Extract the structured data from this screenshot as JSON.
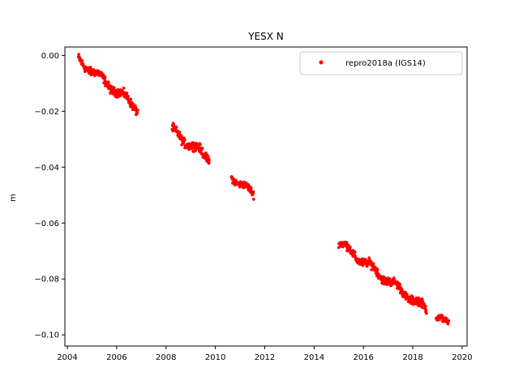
{
  "chart_data": {
    "type": "scatter",
    "title": "YESX N",
    "xlabel": "",
    "ylabel": "m",
    "xlim": [
      2003.9,
      2020.2
    ],
    "ylim": [
      -0.104,
      0.003
    ],
    "x_ticks": [
      2004,
      2006,
      2008,
      2010,
      2012,
      2014,
      2016,
      2018,
      2020
    ],
    "y_ticks": [
      0.0,
      -0.02,
      -0.04,
      -0.06,
      -0.08,
      -0.1
    ],
    "x_tick_labels": [
      "2004",
      "2006",
      "2008",
      "2010",
      "2012",
      "2014",
      "2016",
      "2018",
      "2020"
    ],
    "y_tick_labels": [
      "0.00",
      "−0.02",
      "−0.04",
      "−0.06",
      "−0.08",
      "−0.10"
    ],
    "grid": false,
    "legend_position": "top-right",
    "series": [
      {
        "name": "repro2018a (IGS14)",
        "color": "#ff0000",
        "marker": "dot",
        "segments": [
          {
            "x_start": 2004.45,
            "x_end": 2006.85,
            "y_start": -0.0015,
            "y_end": -0.019,
            "spread": 0.0022
          },
          {
            "x_start": 2008.25,
            "x_end": 2009.75,
            "y_start": -0.027,
            "y_end": -0.037,
            "spread": 0.0022
          },
          {
            "x_start": 2010.65,
            "x_end": 2011.55,
            "y_start": -0.043,
            "y_end": -0.05,
            "spread": 0.0018
          },
          {
            "x_start": 2015.0,
            "x_end": 2018.55,
            "y_start": -0.067,
            "y_end": -0.091,
            "spread": 0.0022
          },
          {
            "x_start": 2018.95,
            "x_end": 2019.45,
            "y_start": -0.093,
            "y_end": -0.097,
            "spread": 0.0018
          }
        ]
      }
    ]
  }
}
